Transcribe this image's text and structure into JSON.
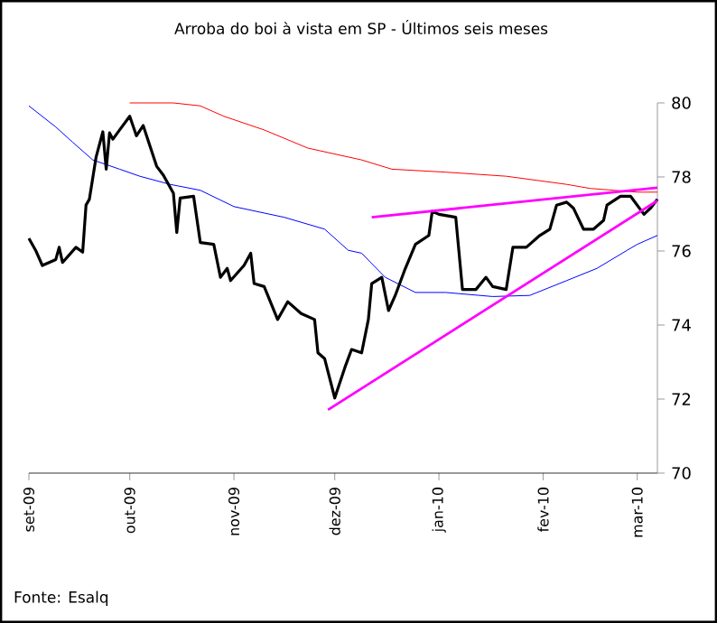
{
  "chart_data": {
    "type": "line",
    "title": "Arroba do boi  à vista em SP - Últimos seis meses",
    "annotations": [
      "Fonte: Esalq"
    ],
    "xlim": [
      "2009-09-01",
      "2010-03-07"
    ],
    "xticks": [
      {
        "value": "2009-09-01",
        "label": "set-09"
      },
      {
        "value": "2009-10-01",
        "label": "out-09"
      },
      {
        "value": "2009-11-01",
        "label": "nov-09"
      },
      {
        "value": "2009-12-01",
        "label": "dez-09"
      },
      {
        "value": "2010-01-01",
        "label": "jan-10"
      },
      {
        "value": "2010-02-01",
        "label": "fev-10"
      },
      {
        "value": "2010-03-01",
        "label": "mar-10"
      }
    ],
    "ylim": [
      70,
      80
    ],
    "yticks": [
      70,
      72,
      74,
      76,
      78,
      80
    ],
    "series": [
      {
        "color": "#0000ff",
        "x": [
          "2009-09-01",
          "2009-09-09",
          "2009-09-14",
          "2009-09-20",
          "2009-09-28",
          "2009-10-04",
          "2009-10-13",
          "2009-10-22",
          "2009-11-01",
          "2009-11-16",
          "2009-11-28",
          "2009-12-05",
          "2009-12-09",
          "2009-12-16",
          "2009-12-25",
          "2010-01-03",
          "2010-01-17",
          "2010-01-28",
          "2010-02-08",
          "2010-02-17",
          "2010-02-26",
          "2010-03-01",
          "2010-03-07"
        ],
        "values": [
          79.92,
          79.35,
          78.94,
          78.46,
          78.21,
          78.02,
          77.8,
          77.64,
          77.2,
          76.91,
          76.59,
          76.02,
          75.94,
          75.29,
          74.88,
          74.88,
          74.77,
          74.8,
          75.2,
          75.53,
          76.02,
          76.18,
          76.42
        ]
      },
      {
        "color": "#ff0000",
        "x": [
          "2009-10-01",
          "2009-10-14",
          "2009-10-22",
          "2009-10-29",
          "2009-11-10",
          "2009-11-23",
          "2009-12-09",
          "2009-12-18",
          "2010-01-03",
          "2010-01-21",
          "2010-02-08",
          "2010-02-15",
          "2010-03-01",
          "2010-03-07"
        ],
        "values": [
          80.0,
          80.0,
          79.92,
          79.64,
          79.27,
          78.78,
          78.46,
          78.21,
          78.13,
          78.02,
          77.8,
          77.69,
          77.59,
          77.59
        ]
      },
      {
        "color": "#000000",
        "x": [
          "2009-09-01",
          "2009-09-03",
          "2009-09-05",
          "2009-09-09",
          "2009-09-10",
          "2009-09-11",
          "2009-09-15",
          "2009-09-17",
          "2009-09-18",
          "2009-09-19",
          "2009-09-21",
          "2009-09-23",
          "2009-09-24",
          "2009-09-25",
          "2009-09-26",
          "2009-09-28",
          "2009-10-01",
          "2009-10-03",
          "2009-10-05",
          "2009-10-09",
          "2009-10-11",
          "2009-10-14",
          "2009-10-15",
          "2009-10-16",
          "2009-10-20",
          "2009-10-22",
          "2009-10-26",
          "2009-10-28",
          "2009-10-30",
          "2009-10-31",
          "2009-11-04",
          "2009-11-06",
          "2009-11-07",
          "2009-11-10",
          "2009-11-14",
          "2009-11-17",
          "2009-11-21",
          "2009-11-25",
          "2009-11-26",
          "2009-11-28",
          "2009-12-01",
          "2009-12-04",
          "2009-12-06",
          "2009-12-09",
          "2009-12-11",
          "2009-12-12",
          "2009-12-15",
          "2009-12-17",
          "2009-12-19",
          "2009-12-22",
          "2009-12-25",
          "2009-12-29",
          "2009-12-30",
          "2010-01-01",
          "2010-01-06",
          "2010-01-08",
          "2010-01-12",
          "2010-01-15",
          "2010-01-17",
          "2010-01-21",
          "2010-01-23",
          "2010-01-27",
          "2010-01-31",
          "2010-02-03",
          "2010-02-05",
          "2010-02-08",
          "2010-02-10",
          "2010-02-13",
          "2010-02-16",
          "2010-02-19",
          "2010-02-20",
          "2010-02-24",
          "2010-02-27",
          "2010-03-03",
          "2010-03-05",
          "2010-03-07"
        ],
        "values": [
          76.34,
          76.02,
          75.61,
          75.77,
          76.1,
          75.69,
          76.1,
          75.97,
          77.24,
          77.4,
          78.54,
          79.22,
          78.21,
          79.19,
          79.02,
          79.27,
          79.64,
          79.11,
          79.39,
          78.29,
          78.05,
          77.56,
          76.5,
          77.43,
          77.48,
          76.23,
          76.18,
          75.29,
          75.53,
          75.2,
          75.61,
          75.94,
          75.12,
          75.04,
          74.15,
          74.63,
          74.31,
          74.15,
          73.25,
          73.09,
          72.03,
          72.85,
          73.34,
          73.25,
          74.15,
          75.12,
          75.29,
          74.39,
          74.8,
          75.53,
          76.18,
          76.42,
          77.07,
          76.99,
          76.91,
          74.96,
          74.96,
          75.29,
          75.04,
          74.96,
          76.1,
          76.1,
          76.42,
          76.59,
          77.24,
          77.32,
          77.16,
          76.59,
          76.59,
          76.83,
          77.24,
          77.48,
          77.48,
          76.99,
          77.16,
          77.4
        ]
      },
      {
        "color": "#ff00ff",
        "x": [
          "2009-12-12",
          "2010-03-07"
        ],
        "values": [
          76.91,
          77.71
        ]
      },
      {
        "color": "#ff00ff",
        "x": [
          "2009-11-29",
          "2010-03-07"
        ],
        "values": [
          71.71,
          77.36
        ]
      }
    ]
  }
}
